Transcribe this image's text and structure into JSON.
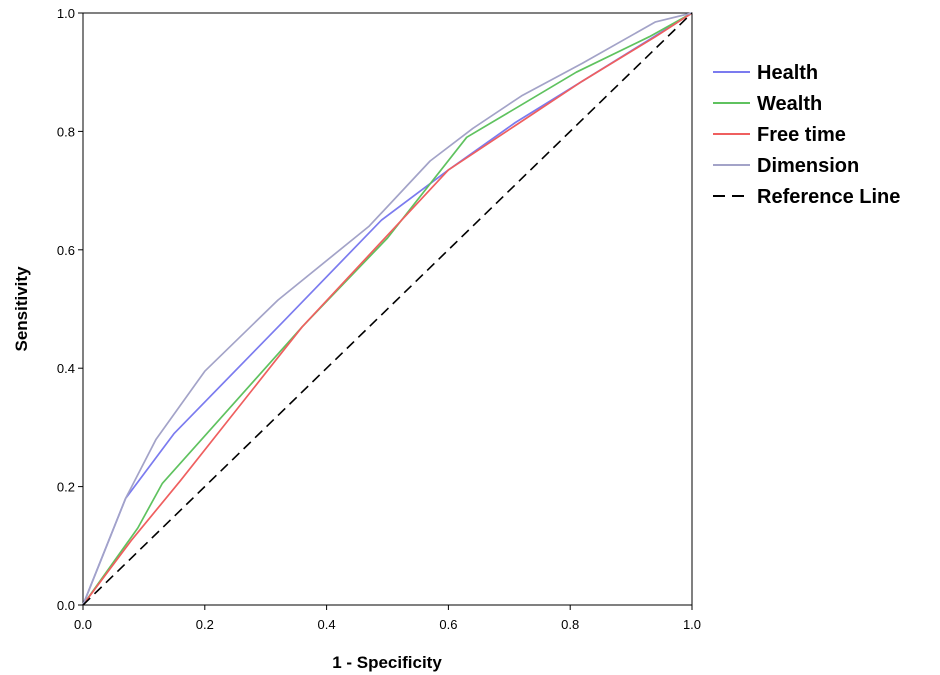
{
  "chart_data": {
    "type": "line",
    "title": "",
    "xlabel": "1 - Specificity",
    "ylabel": "Sensitivity",
    "xlim": [
      0,
      1
    ],
    "ylim": [
      0,
      1
    ],
    "xticks": [
      "0.0",
      "0.2",
      "0.4",
      "0.6",
      "0.8",
      "1.0"
    ],
    "yticks": [
      "0.0",
      "0.2",
      "0.4",
      "0.6",
      "0.8",
      "1.0"
    ],
    "grid": false,
    "legend_position": "right",
    "series": [
      {
        "name": "Health",
        "color": "#7b7bef",
        "dash": "",
        "x": [
          0,
          0.07,
          0.15,
          0.33,
          0.49,
          0.6,
          0.71,
          0.82,
          0.93,
          1.0
        ],
        "y": [
          0,
          0.18,
          0.29,
          0.48,
          0.65,
          0.735,
          0.815,
          0.885,
          0.955,
          1.0
        ]
      },
      {
        "name": "Wealth",
        "color": "#5fc25f",
        "dash": "",
        "x": [
          0,
          0.09,
          0.13,
          0.36,
          0.5,
          0.63,
          0.72,
          0.81,
          0.93,
          1.0
        ],
        "y": [
          0,
          0.13,
          0.205,
          0.47,
          0.62,
          0.79,
          0.845,
          0.9,
          0.96,
          1.0
        ]
      },
      {
        "name": "Free time",
        "color": "#ef5f5f",
        "dash": "",
        "x": [
          0,
          0.08,
          0.16,
          0.36,
          0.6,
          0.71,
          0.82,
          0.94,
          1.0
        ],
        "y": [
          0,
          0.11,
          0.21,
          0.47,
          0.735,
          0.81,
          0.885,
          0.96,
          1.0
        ]
      },
      {
        "name": "Dimension",
        "color": "#a3a3c8",
        "dash": "",
        "x": [
          0,
          0.07,
          0.12,
          0.2,
          0.32,
          0.47,
          0.57,
          0.64,
          0.72,
          0.82,
          0.94,
          1.0
        ],
        "y": [
          0,
          0.18,
          0.28,
          0.395,
          0.515,
          0.64,
          0.75,
          0.805,
          0.86,
          0.915,
          0.985,
          1.0
        ]
      },
      {
        "name": "Reference Line",
        "color": "#000000",
        "dash": "10,6",
        "x": [
          0,
          1
        ],
        "y": [
          0,
          1
        ]
      }
    ]
  }
}
